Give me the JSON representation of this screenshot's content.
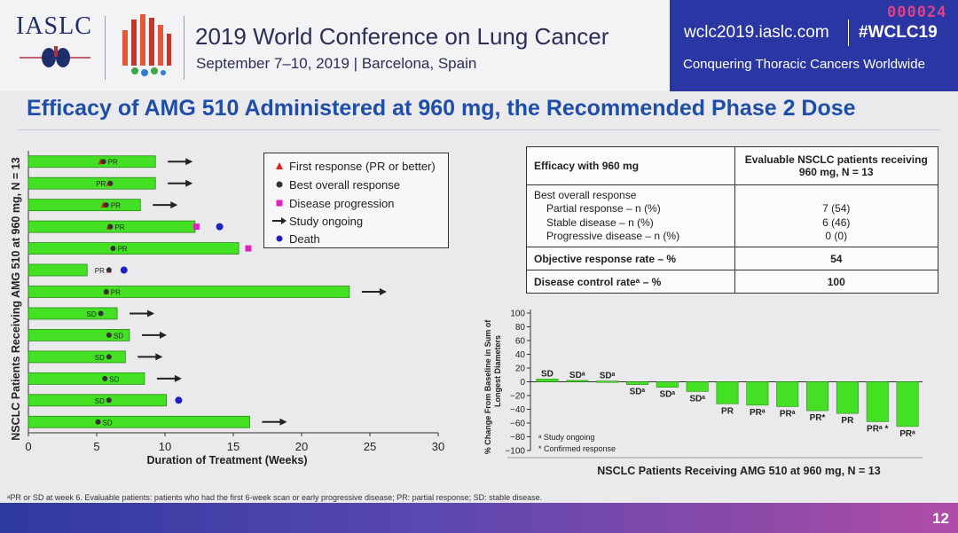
{
  "header": {
    "logo_text": "IASLC",
    "conference_title": "2019 World Conference on Lung Cancer",
    "conference_subtitle": "September 7–10, 2019 | Barcelona, Spain",
    "website": "wclc2019.iaslc.com",
    "hashtag": "#WCLC19",
    "tagline": "Conquering Thoracic Cancers Worldwide",
    "counter": "000024"
  },
  "slide_title": "Efficacy of AMG 510 Administered at 960 mg, the Recommended Phase 2 Dose",
  "legend": {
    "items": [
      {
        "label": "First response (PR or better)",
        "symbol": "triangle",
        "color": "#e02020"
      },
      {
        "label": "Best overall response",
        "symbol": "dot",
        "color": "#333333"
      },
      {
        "label": "Disease progression",
        "symbol": "square",
        "color": "#e020c0"
      },
      {
        "label": "Study ongoing",
        "symbol": "arrow",
        "color": "#222222"
      },
      {
        "label": "Death",
        "symbol": "dot",
        "color": "#2020c0"
      }
    ]
  },
  "table": {
    "header": [
      "Efficacy with 960 mg",
      "Evaluable NSCLC patients receiving 960 mg, N = 13"
    ],
    "section_label": "Best overall response",
    "rows": [
      {
        "label": "Partial response – n (%)",
        "value": "7 (54)"
      },
      {
        "label": "Stable disease – n (%)",
        "value": "6 (46)"
      },
      {
        "label": "Progressive disease – n (%)",
        "value": "0 (0)"
      }
    ],
    "orr_label": "Objective response rate – %",
    "orr_value": "54",
    "dcr_label": "Disease control rateᵃ – %",
    "dcr_value": "100"
  },
  "footnote": "ᵃPR or SD at week 6. Evaluable patients: patients who had the first 6-week scan or early progressive disease; PR: partial response; SD: stable disease.",
  "page_number": "12",
  "chart_data": [
    {
      "type": "bar",
      "orientation": "horizontal",
      "xlabel": "Duration of Treatment (Weeks)",
      "ylabel": "NSCLC Patients Receiving AMG 510 at 960 mg, N = 13",
      "xlim": [
        0,
        30
      ],
      "xticks": [
        0,
        5,
        10,
        15,
        20,
        25,
        30
      ],
      "bar_color": "#44e024",
      "patients": [
        {
          "duration": 9.3,
          "response": "PR",
          "response_week": 5.5,
          "first_response_week": 5.3,
          "ongoing": true
        },
        {
          "duration": 9.3,
          "response": "PR",
          "response_week": 6.0,
          "first_response_week": 5.9,
          "ongoing": true
        },
        {
          "duration": 8.2,
          "response": "PR",
          "response_week": 5.7,
          "first_response_week": 5.5,
          "ongoing": true
        },
        {
          "duration": 12.2,
          "response": "PR",
          "response_week": 6.0,
          "first_response_week": 5.9,
          "ongoing": false,
          "progression_week": 12.3,
          "death_week": 14.0
        },
        {
          "duration": 15.4,
          "response": "PR",
          "response_week": 6.2,
          "first_response_week": null,
          "ongoing": false,
          "progression_week": 16.1
        },
        {
          "duration": 4.3,
          "response": "PR",
          "response_week": 5.9,
          "first_response_week": 5.9,
          "ongoing": false,
          "death_week": 7.0
        },
        {
          "duration": 23.5,
          "response": "PR",
          "response_week": 5.7,
          "first_response_week": 5.7,
          "ongoing": true
        },
        {
          "duration": 6.5,
          "response": "SD",
          "response_week": 5.3,
          "first_response_week": null,
          "ongoing": true
        },
        {
          "duration": 7.4,
          "response": "SD",
          "response_week": 5.9,
          "first_response_week": null,
          "ongoing": true
        },
        {
          "duration": 7.1,
          "response": "SD",
          "response_week": 5.9,
          "first_response_week": null,
          "ongoing": true
        },
        {
          "duration": 8.5,
          "response": "SD",
          "response_week": 5.6,
          "first_response_week": null,
          "ongoing": true
        },
        {
          "duration": 10.1,
          "response": "SD",
          "response_week": 5.9,
          "first_response_week": null,
          "ongoing": false,
          "death_week": 11.0
        },
        {
          "duration": 16.2,
          "response": "SD",
          "response_week": 5.1,
          "first_response_week": null,
          "ongoing": true
        }
      ]
    },
    {
      "type": "bar",
      "orientation": "vertical",
      "title": "",
      "xlabel": "NSCLC Patients Receiving AMG 510 at 960 mg, N = 13",
      "ylabel": "% Change From Baseline in Sum of Longest Diameters",
      "ylim": [
        -100,
        100
      ],
      "yticks": [
        100,
        80,
        60,
        40,
        20,
        0,
        -20,
        -40,
        -60,
        -80,
        -100
      ],
      "bar_color": "#44e024",
      "bars": [
        {
          "value": 4,
          "label": "SD"
        },
        {
          "value": 2,
          "label": "SDᵃ"
        },
        {
          "value": 1,
          "label": "SDᵃ"
        },
        {
          "value": -4,
          "label": "SDᵃ"
        },
        {
          "value": -8,
          "label": "SDᵃ"
        },
        {
          "value": -14,
          "label": "SDᵃ"
        },
        {
          "value": -32,
          "label": "PR"
        },
        {
          "value": -34,
          "label": "PRᵃ"
        },
        {
          "value": -36,
          "label": "PRᵃ"
        },
        {
          "value": -42,
          "label": "PR*"
        },
        {
          "value": -46,
          "label": "PR"
        },
        {
          "value": -58,
          "label": "PRᵃ *"
        },
        {
          "value": -65,
          "label": "PRᵃ"
        }
      ],
      "notes": [
        "ᵃ Study ongoing",
        "* Confirmed response"
      ]
    }
  ]
}
